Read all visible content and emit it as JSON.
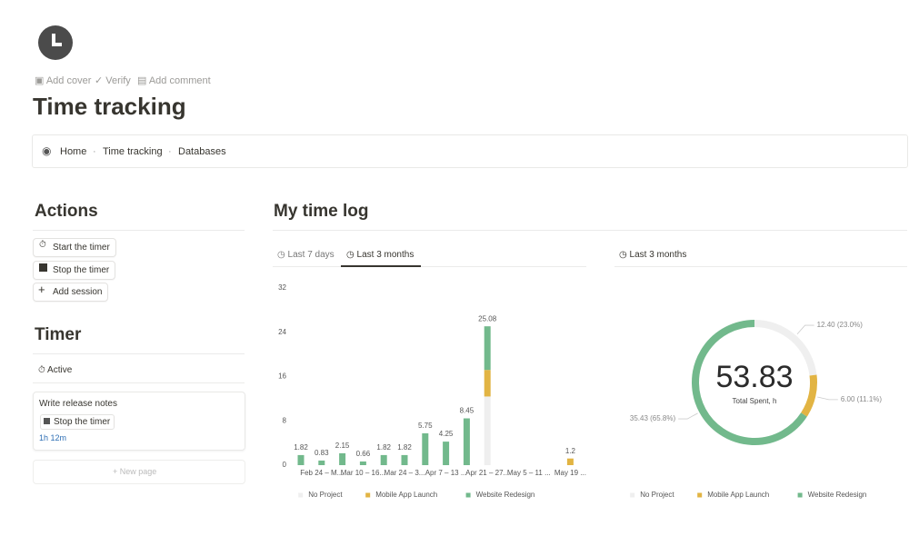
{
  "header": {
    "add_cover": "Add cover",
    "verify": "Verify",
    "add_comment": "Add comment",
    "title": "Time tracking"
  },
  "breadcrumb": [
    "Home",
    "Time tracking",
    "Databases"
  ],
  "actions": {
    "title": "Actions",
    "buttons": [
      "Start the timer",
      "Stop the timer",
      "Add session"
    ]
  },
  "timer": {
    "title": "Timer",
    "status": "Active",
    "card_title": "Write release notes",
    "card_button": "Stop the timer",
    "duration": "1h 12m",
    "new_page": "New page"
  },
  "time_log": {
    "title": "My time log",
    "tabs": [
      "Last 7 days",
      "Last 3 months"
    ],
    "donut_tab": "Last 3 months"
  },
  "chart_data": [
    {
      "type": "bar",
      "stacked": true,
      "categories": [
        null,
        "Feb 24 – M...",
        null,
        "Mar 10 – 16...",
        null,
        "Mar 24 – 3...",
        null,
        "Apr 7 – 13 ...",
        null,
        "Apr 21 – 27...",
        null,
        "May 5 – 11 ...",
        null,
        "May 19 ..."
      ],
      "series": [
        {
          "name": "No Project",
          "color": "#efefef",
          "values": [
            null,
            null,
            null,
            null,
            null,
            null,
            null,
            null,
            null,
            12.4,
            null,
            null,
            null,
            null
          ]
        },
        {
          "name": "Mobile App Launch",
          "color": "#e2b443",
          "values": [
            null,
            null,
            null,
            null,
            null,
            null,
            null,
            null,
            null,
            4.8,
            null,
            null,
            null,
            1.2
          ]
        },
        {
          "name": "Website Redesign",
          "color": "#72b98c",
          "values": [
            1.82,
            0.83,
            2.15,
            0.66,
            1.82,
            1.82,
            5.75,
            4.25,
            8.45,
            7.88,
            null,
            null,
            null,
            null
          ]
        }
      ],
      "totals": [
        1.82,
        0.83,
        2.15,
        0.66,
        1.82,
        1.82,
        5.75,
        4.25,
        8.45,
        25.08,
        null,
        null,
        null,
        1.2
      ],
      "ylim": [
        0,
        32
      ],
      "yticks": [
        0,
        8,
        16,
        24,
        32
      ],
      "grid": false,
      "legend": "bottom"
    },
    {
      "type": "donut",
      "categories": [
        "No Project",
        "Mobile App Launch",
        "Website Redesign"
      ],
      "colors": [
        "#efefef",
        "#e2b443",
        "#72b98c"
      ],
      "values": [
        12.4,
        6.0,
        35.43
      ],
      "value_labels": [
        "12.40 (23.0%)",
        "6.00 (11.1%)",
        "35.43 (65.8%)"
      ],
      "center_value": 53.83,
      "center_label": "Total Spent, h",
      "legend": "bottom"
    }
  ]
}
